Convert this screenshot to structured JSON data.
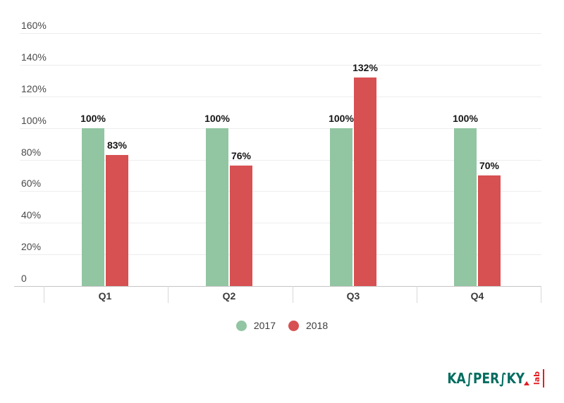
{
  "chart_data": {
    "type": "bar",
    "title": "",
    "xlabel": "",
    "ylabel": "",
    "categories": [
      "Q1",
      "Q2",
      "Q3",
      "Q4"
    ],
    "series": [
      {
        "name": "2017",
        "color": "#92c5a2",
        "values": [
          100,
          100,
          100,
          100
        ],
        "labels": [
          "100%",
          "100%",
          "100%",
          "100%"
        ]
      },
      {
        "name": "2018",
        "color": "#d75052",
        "values": [
          83,
          76,
          132,
          70
        ],
        "labels": [
          "83%",
          "76%",
          "132%",
          "70%"
        ]
      }
    ],
    "ylim": [
      0,
      160
    ],
    "ytick_step": 20,
    "yticks": [
      "0",
      "20%",
      "40%",
      "60%",
      "80%",
      "100%",
      "120%",
      "140%",
      "160%"
    ],
    "grid": true,
    "legend_position": "bottom"
  },
  "legend": {
    "items": [
      {
        "label": "2017",
        "color": "#92c5a2"
      },
      {
        "label": "2018",
        "color": "#d75052"
      }
    ]
  },
  "logo": {
    "brand": "KASPERSKY",
    "brand_display": "KA∫PER∫KY",
    "sub": "lab",
    "brand_color": "#006d60",
    "accent_color": "#e31e24"
  },
  "colors": {
    "background": "#ffffff",
    "gridline": "#ededed",
    "axis_line": "#c5c5c5",
    "tick_label": "#4a4a4a",
    "value_label": "#161616"
  }
}
